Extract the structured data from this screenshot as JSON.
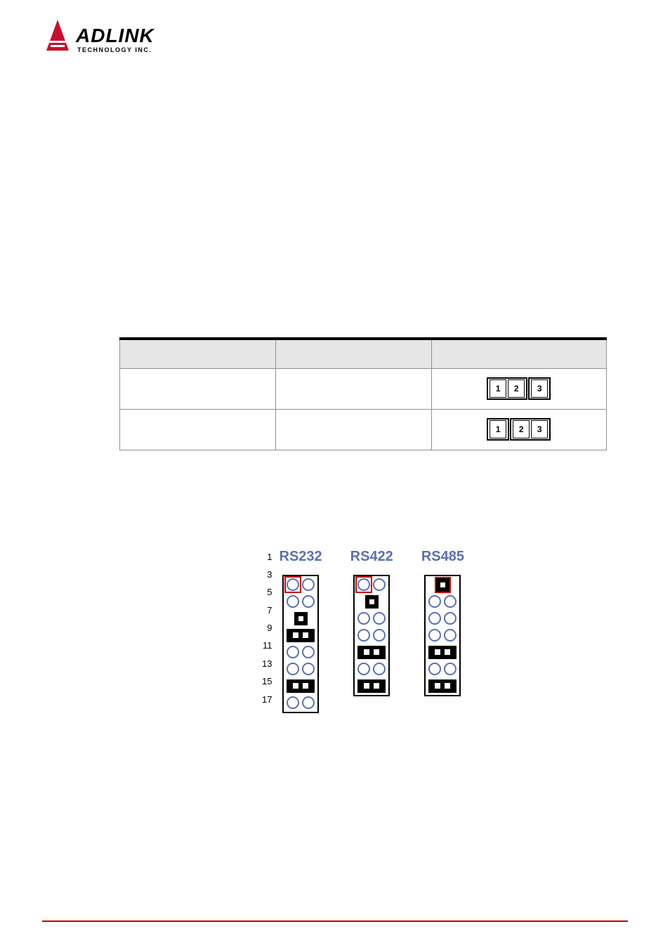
{
  "brand": {
    "name": "ADLINK",
    "tagline": "TECHNOLOGY INC.",
    "logo_red": "#c8102e",
    "logo_black": "#000000"
  },
  "table": {
    "border_top_color": "#000000",
    "header_bg": "#e6e6e6",
    "border_color": "#909090",
    "columns": [
      "",
      "",
      ""
    ],
    "rows": [
      {
        "c1": "",
        "c2": "",
        "jumper": [
          1,
          2,
          3
        ],
        "closed": [
          1,
          2
        ]
      },
      {
        "c1": "",
        "c2": "",
        "jumper": [
          1,
          2,
          3
        ],
        "closed": [
          2,
          3
        ]
      }
    ]
  },
  "pinheaders": {
    "title_color_rs232": "#5b6fb5",
    "title_color_rs422": "#5b6fb5",
    "title_color_rs485": "#5b6fb5",
    "open_pin_border": "#5b6fb5",
    "row_numbers": [
      "1",
      "3",
      "5",
      "7",
      "9",
      "11",
      "13",
      "15",
      "17"
    ],
    "columns": [
      {
        "label": "RS232",
        "title_color": "#5b6fb5",
        "rows": [
          {
            "type": "open2",
            "first_boxed": true
          },
          {
            "type": "open2"
          },
          {
            "type": "jumper1"
          },
          {
            "type": "jumper2"
          },
          {
            "type": "open2"
          },
          {
            "type": "open2"
          },
          {
            "type": "jumper2"
          },
          {
            "type": "open2"
          }
        ]
      },
      {
        "label": "RS422",
        "title_color": "#5b6fb5",
        "rows": [
          {
            "type": "open2",
            "first_boxed": true
          },
          {
            "type": "jumper1"
          },
          {
            "type": "open2"
          },
          {
            "type": "open2"
          },
          {
            "type": "jumper2"
          },
          {
            "type": "open2"
          },
          {
            "type": "jumper2"
          }
        ]
      },
      {
        "label": "RS485",
        "title_color": "#5b6fb5",
        "rows": [
          {
            "type": "jumper1",
            "first_boxed": true
          },
          {
            "type": "open2"
          },
          {
            "type": "open2"
          },
          {
            "type": "open2"
          },
          {
            "type": "jumper2"
          },
          {
            "type": "open2"
          },
          {
            "type": "jumper2"
          }
        ]
      }
    ]
  },
  "footer": {
    "line_color": "#cc0000"
  }
}
